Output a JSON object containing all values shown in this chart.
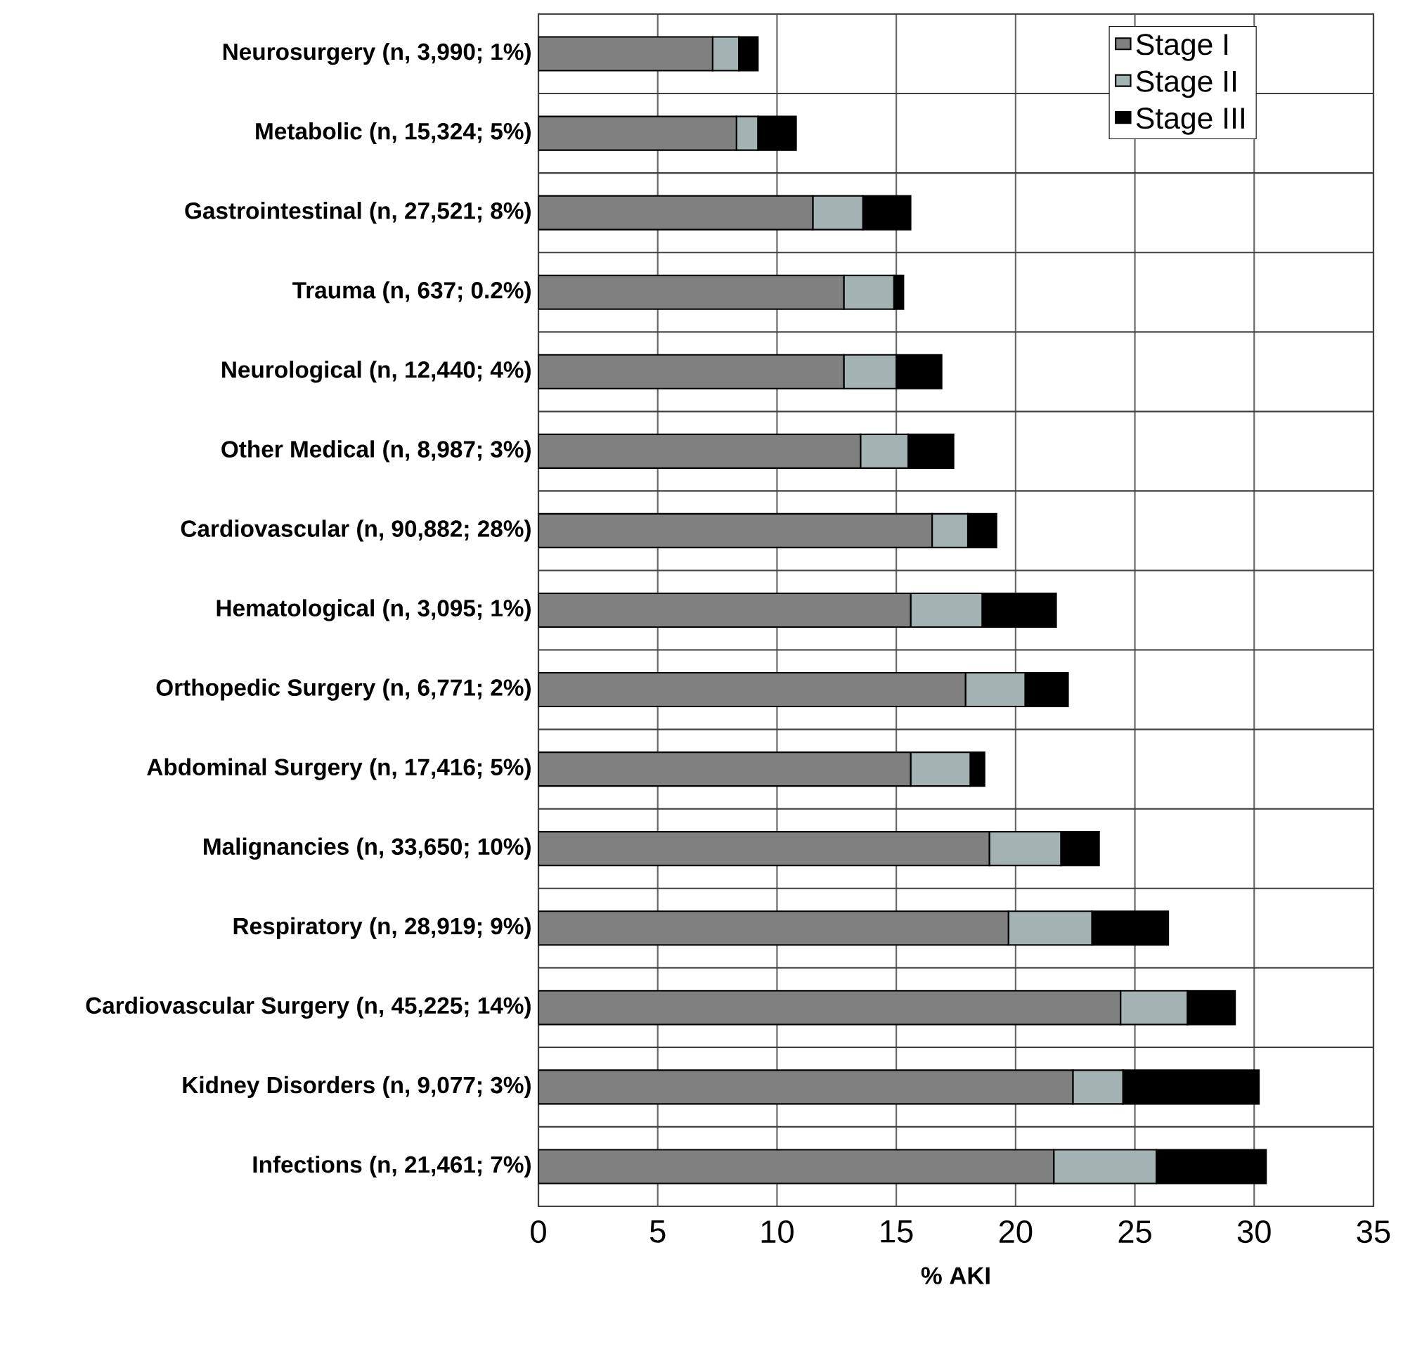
{
  "chart_data": {
    "type": "bar",
    "orientation": "horizontal",
    "stacked": true,
    "xlabel": "% AKI",
    "categories": [
      "Neurosurgery (n, 3,990; 1%)",
      "Metabolic (n, 15,324; 5%)",
      "Gastrointestinal (n, 27,521; 8%)",
      "Trauma (n, 637; 0.2%)",
      "Neurological (n, 12,440; 4%)",
      "Other Medical (n, 8,987; 3%)",
      "Cardiovascular (n, 90,882; 28%)",
      "Hematological (n, 3,095; 1%)",
      "Orthopedic Surgery (n, 6,771; 2%)",
      "Abdominal Surgery (n, 17,416; 5%)",
      "Malignancies (n, 33,650; 10%)",
      "Respiratory (n, 28,919; 9%)",
      "Cardiovascular Surgery (n, 45,225; 14%)",
      "Kidney Disorders (n, 9,077; 3%)",
      "Infections (n, 21,461; 7%)"
    ],
    "series": [
      {
        "name": "Stage I",
        "color": "#808080",
        "values": [
          7.3,
          8.3,
          11.5,
          12.8,
          12.8,
          13.5,
          16.5,
          15.6,
          17.9,
          15.6,
          18.9,
          19.7,
          24.4,
          22.4,
          21.6
        ]
      },
      {
        "name": "Stage II",
        "color": "#a3b3b3",
        "values": [
          1.1,
          0.9,
          2.1,
          2.1,
          2.2,
          2.0,
          1.5,
          3.0,
          2.5,
          2.5,
          3.0,
          3.5,
          2.8,
          2.1,
          4.3
        ]
      },
      {
        "name": "Stage III",
        "color": "#000000",
        "values": [
          0.8,
          1.6,
          2.0,
          0.4,
          1.9,
          1.9,
          1.2,
          3.1,
          1.8,
          0.6,
          1.6,
          3.2,
          2.0,
          5.7,
          4.6
        ]
      }
    ],
    "xlim": [
      0,
      35
    ],
    "xticks": [
      0,
      5,
      10,
      15,
      20,
      25,
      30,
      35
    ],
    "grid": true,
    "legend": "top right"
  }
}
